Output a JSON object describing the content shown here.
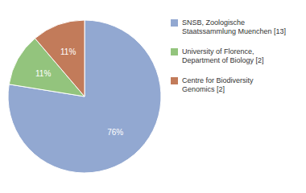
{
  "chart_data": {
    "type": "pie",
    "categories": [
      "SNSB, Zoologische\nStaatssammlung Muenchen [13]",
      "University of Florence,\nDepartment of Biology [2]",
      "Centre for Biodiversity\nGenomics [2]"
    ],
    "values": [
      76,
      11,
      11
    ],
    "value_labels": [
      "76%",
      "11%",
      "11%"
    ],
    "colors": [
      "#92a8d1",
      "#93c47d",
      "#c27b5a"
    ],
    "data_labels": true,
    "legend": "right"
  }
}
